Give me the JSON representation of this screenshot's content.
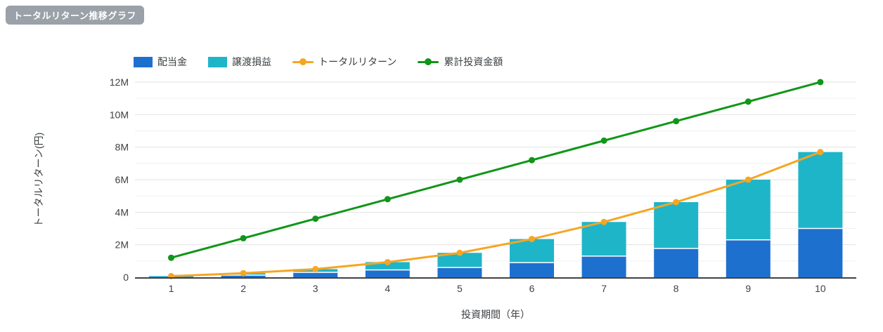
{
  "page": {
    "badge": "トータルリターン推移グラフ",
    "badge_color": "#9aa1a8",
    "background": "#ffffff"
  },
  "chart_data": {
    "type": "combo: stacked bar + line",
    "title": "トータルリターン推移グラフ",
    "xlabel": "投資期間（年）",
    "ylabel": "トータルリターン(円)",
    "x": [
      1,
      2,
      3,
      4,
      5,
      6,
      7,
      8,
      9,
      10
    ],
    "x_tick_labels": [
      "1",
      "2",
      "3",
      "4",
      "5",
      "6",
      "7",
      "8",
      "9",
      "10"
    ],
    "y_tick_labels": [
      "0",
      "2M",
      "4M",
      "6M",
      "8M",
      "10M",
      "12M"
    ],
    "y_unit": "million yen",
    "ylim_m": [
      0,
      12
    ],
    "grid": true,
    "legend_position": "top",
    "series": [
      {
        "name": "配当金",
        "type": "bar-stacked",
        "color": "#1e70cf",
        "values_m": [
          0.02,
          0.13,
          0.3,
          0.45,
          0.6,
          0.9,
          1.3,
          1.77,
          2.3,
          3.0
        ]
      },
      {
        "name": "譲渡損益",
        "type": "bar-stacked",
        "color": "#1fb5c9",
        "values_m": [
          0.05,
          0.12,
          0.2,
          0.48,
          0.9,
          1.45,
          2.1,
          2.85,
          3.7,
          4.7
        ]
      },
      {
        "name": "トータルリターン",
        "type": "line",
        "color": "#f5a623",
        "values_m": [
          0.07,
          0.25,
          0.5,
          0.93,
          1.5,
          2.35,
          3.4,
          4.62,
          6.0,
          7.7
        ]
      },
      {
        "name": "累計投資金額",
        "type": "line",
        "color": "#109618",
        "values_m": [
          1.2,
          2.4,
          3.6,
          4.8,
          6.0,
          7.2,
          8.4,
          9.6,
          10.8,
          12.0
        ]
      }
    ],
    "style": {
      "grid_major": "#e2e2e2",
      "grid_minor": "#f0f0f0",
      "axis_line": "#424242",
      "tick_text": "#404040"
    }
  }
}
